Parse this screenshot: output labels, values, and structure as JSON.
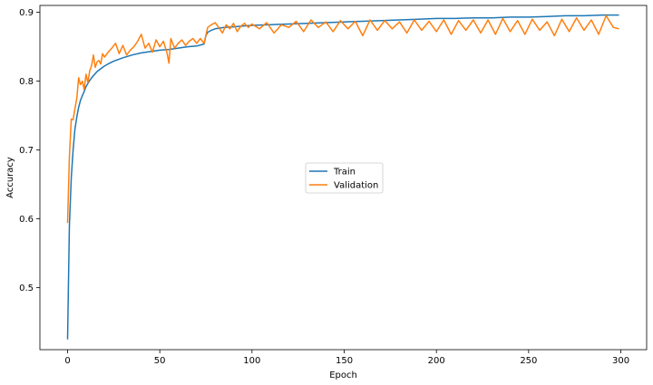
{
  "chart_data": {
    "type": "line",
    "xlabel": "Epoch",
    "ylabel": "Accuracy",
    "xlim": [
      -15,
      314
    ],
    "ylim": [
      0.41,
      0.91
    ],
    "x_ticks": [
      0,
      50,
      100,
      150,
      200,
      250,
      300
    ],
    "y_ticks": [
      0.5,
      0.6,
      0.7,
      0.8,
      0.9
    ],
    "grid": false,
    "legend_position": "center",
    "series_colors": [
      "#1f77b4",
      "#ff7f0e"
    ],
    "series": [
      {
        "name": "Train",
        "x": [
          0,
          1,
          2,
          3,
          4,
          5,
          6,
          7,
          8,
          9,
          10,
          12,
          14,
          16,
          18,
          20,
          22,
          25,
          28,
          30,
          35,
          40,
          45,
          50,
          55,
          60,
          65,
          70,
          74,
          75,
          76,
          78,
          80,
          85,
          90,
          95,
          100,
          110,
          120,
          130,
          140,
          150,
          160,
          170,
          180,
          190,
          200,
          210,
          220,
          230,
          240,
          250,
          260,
          270,
          280,
          290,
          299
        ],
        "y": [
          0.425,
          0.59,
          0.66,
          0.7,
          0.73,
          0.748,
          0.762,
          0.772,
          0.779,
          0.785,
          0.792,
          0.801,
          0.808,
          0.814,
          0.818,
          0.822,
          0.825,
          0.829,
          0.832,
          0.834,
          0.838,
          0.841,
          0.843,
          0.845,
          0.846,
          0.848,
          0.85,
          0.851,
          0.854,
          0.866,
          0.871,
          0.874,
          0.876,
          0.878,
          0.879,
          0.88,
          0.881,
          0.882,
          0.883,
          0.884,
          0.885,
          0.886,
          0.887,
          0.888,
          0.889,
          0.89,
          0.891,
          0.891,
          0.892,
          0.892,
          0.893,
          0.893,
          0.894,
          0.895,
          0.895,
          0.896,
          0.896
        ]
      },
      {
        "name": "Validation",
        "x": [
          0,
          1,
          2,
          3,
          4,
          5,
          6,
          7,
          8,
          9,
          10,
          11,
          12,
          13,
          14,
          15,
          16,
          17,
          18,
          19,
          20,
          22,
          24,
          26,
          28,
          30,
          32,
          34,
          36,
          38,
          40,
          42,
          44,
          46,
          48,
          50,
          52,
          54,
          55,
          56,
          58,
          60,
          62,
          64,
          66,
          68,
          70,
          72,
          74,
          76,
          78,
          80,
          82,
          84,
          86,
          88,
          90,
          92,
          94,
          96,
          98,
          100,
          104,
          108,
          112,
          116,
          120,
          124,
          128,
          132,
          136,
          140,
          144,
          148,
          152,
          156,
          160,
          164,
          168,
          172,
          176,
          180,
          184,
          188,
          192,
          196,
          200,
          204,
          208,
          212,
          216,
          220,
          224,
          228,
          232,
          236,
          240,
          244,
          248,
          252,
          256,
          260,
          264,
          268,
          272,
          276,
          280,
          284,
          288,
          292,
          296,
          299
        ],
        "y": [
          0.594,
          0.69,
          0.745,
          0.744,
          0.76,
          0.775,
          0.805,
          0.795,
          0.8,
          0.788,
          0.81,
          0.798,
          0.815,
          0.822,
          0.838,
          0.82,
          0.828,
          0.83,
          0.825,
          0.84,
          0.835,
          0.842,
          0.848,
          0.855,
          0.84,
          0.852,
          0.838,
          0.845,
          0.85,
          0.858,
          0.868,
          0.848,
          0.855,
          0.842,
          0.86,
          0.85,
          0.858,
          0.84,
          0.826,
          0.862,
          0.848,
          0.855,
          0.86,
          0.852,
          0.858,
          0.862,
          0.855,
          0.862,
          0.855,
          0.878,
          0.882,
          0.885,
          0.878,
          0.87,
          0.882,
          0.876,
          0.884,
          0.872,
          0.88,
          0.884,
          0.878,
          0.883,
          0.876,
          0.885,
          0.87,
          0.882,
          0.878,
          0.887,
          0.872,
          0.889,
          0.878,
          0.886,
          0.872,
          0.888,
          0.876,
          0.887,
          0.866,
          0.889,
          0.874,
          0.888,
          0.876,
          0.886,
          0.87,
          0.889,
          0.874,
          0.887,
          0.872,
          0.889,
          0.868,
          0.888,
          0.874,
          0.889,
          0.87,
          0.889,
          0.868,
          0.891,
          0.872,
          0.888,
          0.868,
          0.89,
          0.874,
          0.886,
          0.866,
          0.89,
          0.872,
          0.892,
          0.874,
          0.889,
          0.868,
          0.895,
          0.878,
          0.876
        ]
      }
    ]
  }
}
